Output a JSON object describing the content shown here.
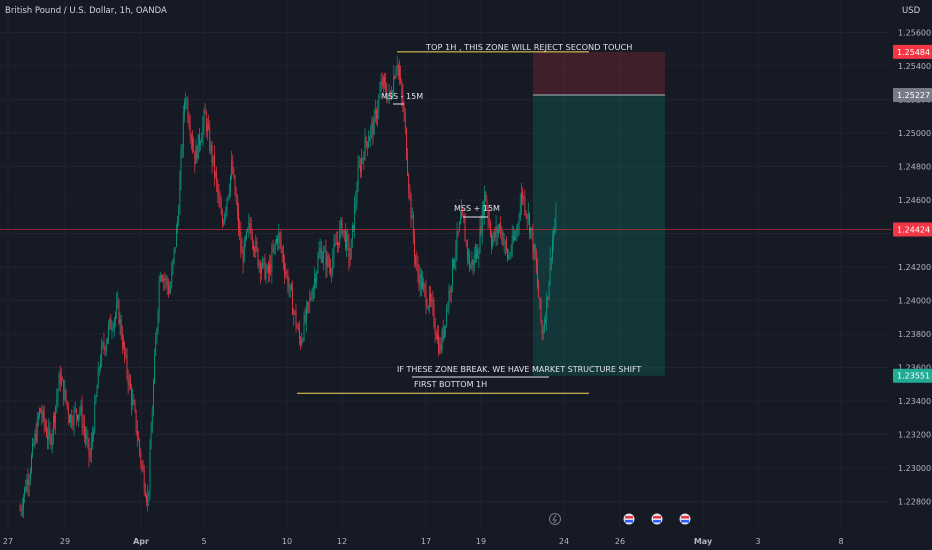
{
  "header": {
    "symbol_title": "British Pound / U.S. Dollar, 1h, OANDA",
    "currency": "USD"
  },
  "chart_data": {
    "type": "candlestick",
    "instrument": "British Pound / U.S. Dollar",
    "timeframe": "1h",
    "source": "OANDA",
    "ylim": [
      1.227,
      1.2575
    ],
    "y_ticks": [
      {
        "v": 1.256,
        "label": "1.25600"
      },
      {
        "v": 1.254,
        "label": "1.25400"
      },
      {
        "v": 1.252,
        "label": "1.25200"
      },
      {
        "v": 1.25,
        "label": "1.25000"
      },
      {
        "v": 1.248,
        "label": "1.24800"
      },
      {
        "v": 1.246,
        "label": "1.24600"
      },
      {
        "v": 1.244,
        "label": "1.24400"
      },
      {
        "v": 1.242,
        "label": "1.24200"
      },
      {
        "v": 1.24,
        "label": "1.24000"
      },
      {
        "v": 1.238,
        "label": "1.23800"
      },
      {
        "v": 1.236,
        "label": "1.23600"
      },
      {
        "v": 1.234,
        "label": "1.23400"
      },
      {
        "v": 1.232,
        "label": "1.23200"
      },
      {
        "v": 1.23,
        "label": "1.23000"
      },
      {
        "v": 1.228,
        "label": "1.22800"
      }
    ],
    "x_ticks": [
      {
        "label": "27",
        "pos": 8
      },
      {
        "label": "29",
        "pos": 65
      },
      {
        "label": "Apr",
        "pos": 141,
        "bold": true
      },
      {
        "label": "5",
        "pos": 204
      },
      {
        "label": "10",
        "pos": 287
      },
      {
        "label": "12",
        "pos": 342
      },
      {
        "label": "17",
        "pos": 426
      },
      {
        "label": "19",
        "pos": 481
      },
      {
        "label": "24",
        "pos": 564
      },
      {
        "label": "26",
        "pos": 620
      },
      {
        "label": "May",
        "pos": 703,
        "bold": true
      },
      {
        "label": "3",
        "pos": 758
      },
      {
        "label": "8",
        "pos": 841
      }
    ],
    "price_tags": [
      {
        "value": 1.25484,
        "label": "1.25484",
        "color": "#f23645"
      },
      {
        "value": 1.25227,
        "label": "1.25227",
        "color": "#787b86"
      },
      {
        "value": 1.24424,
        "label": "1.24424",
        "color": "#f23645"
      },
      {
        "value": 1.23551,
        "label": "1.23551",
        "color": "#22ab94"
      }
    ],
    "current_price": 1.24424,
    "price_path": [
      [
        20,
        1.2275
      ],
      [
        30,
        1.23
      ],
      [
        40,
        1.2335
      ],
      [
        50,
        1.2315
      ],
      [
        60,
        1.2355
      ],
      [
        70,
        1.233
      ],
      [
        80,
        1.2335
      ],
      [
        90,
        1.2305
      ],
      [
        100,
        1.2365
      ],
      [
        110,
        1.2385
      ],
      [
        118,
        1.2395
      ],
      [
        125,
        1.2365
      ],
      [
        135,
        1.233
      ],
      [
        142,
        1.23
      ],
      [
        148,
        1.228
      ],
      [
        153,
        1.2345
      ],
      [
        160,
        1.242
      ],
      [
        170,
        1.2405
      ],
      [
        178,
        1.245
      ],
      [
        185,
        1.2525
      ],
      [
        195,
        1.2485
      ],
      [
        205,
        1.251
      ],
      [
        215,
        1.2475
      ],
      [
        222,
        1.2445
      ],
      [
        232,
        1.248
      ],
      [
        242,
        1.2425
      ],
      [
        250,
        1.2445
      ],
      [
        258,
        1.2425
      ],
      [
        268,
        1.2415
      ],
      [
        278,
        1.244
      ],
      [
        290,
        1.2405
      ],
      [
        300,
        1.2375
      ],
      [
        310,
        1.24
      ],
      [
        320,
        1.243
      ],
      [
        330,
        1.242
      ],
      [
        342,
        1.2445
      ],
      [
        350,
        1.2425
      ],
      [
        358,
        1.2475
      ],
      [
        366,
        1.2495
      ],
      [
        374,
        1.2505
      ],
      [
        382,
        1.253
      ],
      [
        390,
        1.252
      ],
      [
        397,
        1.2545
      ],
      [
        404,
        1.251
      ],
      [
        410,
        1.246
      ],
      [
        416,
        1.242
      ],
      [
        424,
        1.2405
      ],
      [
        432,
        1.2395
      ],
      [
        440,
        1.237
      ],
      [
        448,
        1.24
      ],
      [
        455,
        1.243
      ],
      [
        462,
        1.245
      ],
      [
        470,
        1.242
      ],
      [
        478,
        1.243
      ],
      [
        485,
        1.2465
      ],
      [
        492,
        1.2435
      ],
      [
        500,
        1.2445
      ],
      [
        508,
        1.2425
      ],
      [
        516,
        1.244
      ],
      [
        522,
        1.2465
      ],
      [
        530,
        1.2445
      ],
      [
        536,
        1.242
      ],
      [
        542,
        1.238
      ],
      [
        547,
        1.24
      ],
      [
        552,
        1.2435
      ],
      [
        556,
        1.2447
      ]
    ],
    "zones": [
      {
        "kind": "stop",
        "from": 1.25484,
        "to": 1.25227,
        "color": "#f23645"
      },
      {
        "kind": "target",
        "from": 1.25227,
        "to": 1.23551,
        "color": "#089981"
      }
    ],
    "horizontal_levels": [
      {
        "value": 1.25484,
        "x_from": 397,
        "x_to": 589
      },
      {
        "value": 1.23446,
        "x_from": 297,
        "x_to": 589
      }
    ],
    "annotations": [
      {
        "id": "top",
        "text": "TOP 1H , THIS ZONE WILL REJECT SECOND TOUCH"
      },
      {
        "id": "mss_minus",
        "text": "MSS - 15M"
      },
      {
        "id": "mss_plus",
        "text": "MSS  +  15M"
      },
      {
        "id": "break",
        "text": "IF THESE ZONE BREAK. WE HAVE MARKET STRUCTURE SHIFT"
      },
      {
        "id": "bottom",
        "text": "FIRST BOTTOM 1H"
      }
    ]
  }
}
